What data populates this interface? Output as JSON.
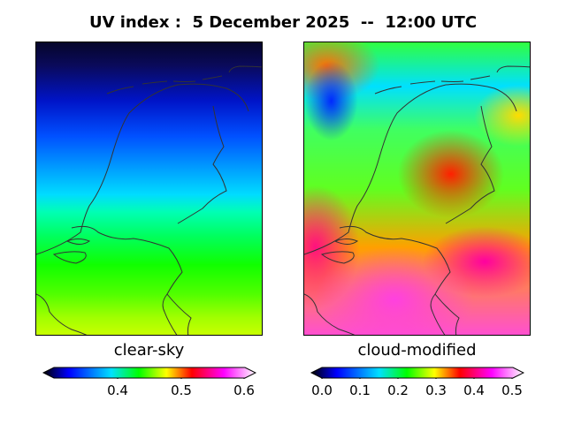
{
  "title": "UV index :  5 December 2025  --  12:00 UTC",
  "panels": [
    {
      "label": "clear-sky",
      "colorbar": {
        "ticks": [
          "0.4",
          "0.5",
          "0.6"
        ],
        "tick_values": [
          0.4,
          0.5,
          0.6
        ],
        "range": [
          0.3,
          0.6
        ]
      }
    },
    {
      "label": "cloud-modified",
      "colorbar": {
        "ticks": [
          "0.0",
          "0.1",
          "0.2",
          "0.3",
          "0.4",
          "0.5"
        ],
        "tick_values": [
          0.0,
          0.1,
          0.2,
          0.3,
          0.4,
          0.5
        ],
        "range": [
          0.0,
          0.5
        ]
      }
    }
  ],
  "colors": {
    "colormap": [
      "#000000",
      "#0000ff",
      "#00e0ff",
      "#00ff00",
      "#ffff00",
      "#ff0000",
      "#ff00ff",
      "#ffffff"
    ],
    "coastline": "#333333"
  }
}
